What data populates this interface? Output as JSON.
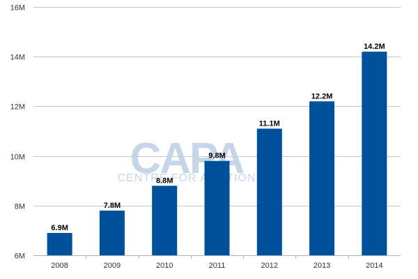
{
  "chart_data": {
    "type": "bar",
    "categories": [
      "2008",
      "2009",
      "2010",
      "2011",
      "2012",
      "2013",
      "2014"
    ],
    "values": [
      6.9,
      7.8,
      8.8,
      9.8,
      11.1,
      12.2,
      14.2
    ],
    "data_labels": [
      "6.9M",
      "7.8M",
      "8.8M",
      "9.8M",
      "11.1M",
      "12.2M",
      "14.2M"
    ],
    "yticks": [
      6,
      8,
      10,
      12,
      14,
      16
    ],
    "ytick_labels": [
      "6M",
      "8M",
      "10M",
      "12M",
      "14M",
      "16M"
    ],
    "ylim": [
      6,
      16
    ],
    "grid": true,
    "title": "",
    "xlabel": "",
    "ylabel": "",
    "bar_color": "#00519c"
  },
  "watermark": {
    "logo_text": "CAPA",
    "tagline": "CENTRE FOR AVIATION",
    "color": "#bccfe4"
  }
}
